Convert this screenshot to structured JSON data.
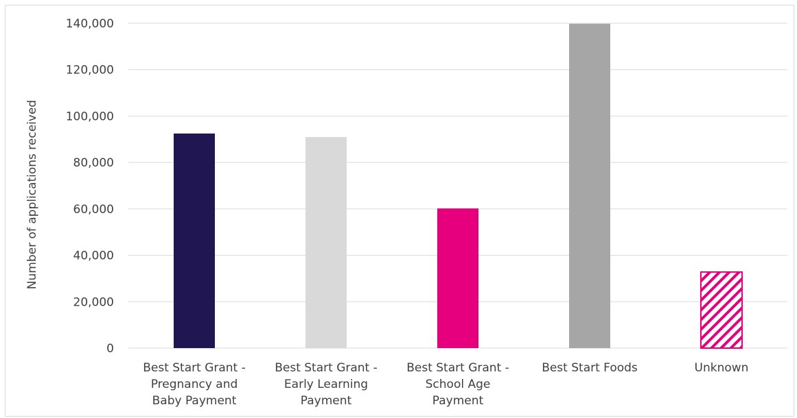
{
  "chart_data": {
    "type": "bar",
    "title": "",
    "xlabel": "",
    "ylabel": "Number of applications received",
    "ylim": [
      0,
      140000
    ],
    "yticks": [
      0,
      20000,
      40000,
      60000,
      80000,
      100000,
      120000,
      140000
    ],
    "ytick_labels": [
      "0",
      "20,000",
      "40,000",
      "60,000",
      "80,000",
      "100,000",
      "120,000",
      "140,000"
    ],
    "grid": true,
    "legend": "none",
    "categories": [
      [
        "Best Start Grant -",
        "Pregnancy and",
        "Baby Payment"
      ],
      [
        "Best Start Grant -",
        "Early Learning",
        "Payment"
      ],
      [
        "Best Start Grant -",
        "School Age",
        "Payment"
      ],
      [
        "Best Start Foods"
      ],
      [
        "Unknown"
      ]
    ],
    "values": [
      92500,
      91000,
      60200,
      139800,
      32800
    ],
    "colors": [
      "#201651",
      "#d9d9d9",
      "#e6007e",
      "#a6a6a6",
      "#e6007e"
    ],
    "patterns": [
      "solid",
      "solid",
      "solid",
      "solid",
      "diagonal-hatch"
    ]
  }
}
